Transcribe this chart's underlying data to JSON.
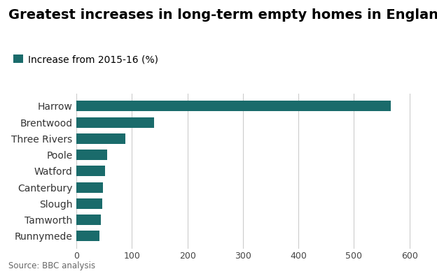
{
  "title": "Greatest increases in long-term empty homes in England",
  "legend_label": "Increase from 2015-16 (%)",
  "categories": [
    "Runnymede",
    "Tamworth",
    "Slough",
    "Canterbury",
    "Watford",
    "Poole",
    "Three Rivers",
    "Brentwood",
    "Harrow"
  ],
  "values": [
    42,
    44,
    46,
    48,
    52,
    55,
    88,
    140,
    566
  ],
  "bar_color": "#1a6b6b",
  "legend_color": "#1a6b6b",
  "background_color": "#ffffff",
  "source_text": "Source: BBC analysis",
  "xlim": [
    0,
    630
  ],
  "xticks": [
    0,
    100,
    200,
    300,
    400,
    500,
    600
  ],
  "title_fontsize": 14,
  "legend_fontsize": 10,
  "tick_fontsize": 9,
  "source_fontsize": 8.5,
  "bar_height": 0.65
}
